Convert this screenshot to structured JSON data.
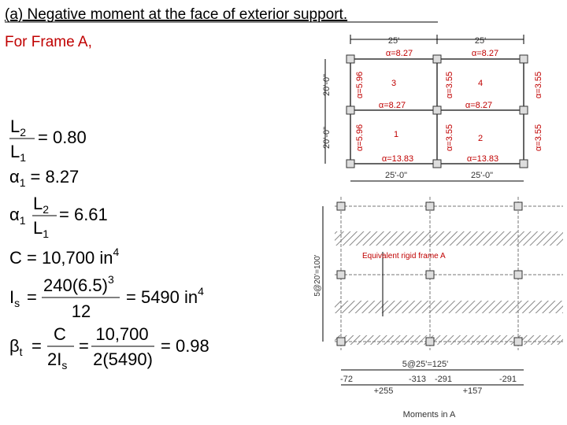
{
  "header": {
    "title": "(a) Negative moment at the face of exterior support.",
    "subtitle": "For Frame A,"
  },
  "equations": {
    "ratio": {
      "num": "L",
      "num_sub": "2",
      "den": "L",
      "den_sub": "1",
      "result": "= 0.80"
    },
    "alpha": {
      "symbol": "α",
      "sub": "1",
      "result": "= 8.27"
    },
    "alpha_ratio": {
      "symbol": "α",
      "sub": "1",
      "num": "L",
      "num_sub": "2",
      "den": "L",
      "den_sub": "1",
      "result": "= 6.61"
    },
    "torsion": {
      "text": "C = 10,700 in",
      "sup": "4"
    },
    "slab_inertia": {
      "symbol": "I",
      "sub": "s",
      "eq": "=",
      "num": "240(6.5)",
      "num_sup": "3",
      "den": "12",
      "result": "= 5490 in",
      "result_sup": "4"
    },
    "beta": {
      "symbol": "β",
      "sub": "t",
      "eq": "=",
      "num1": "C",
      "den1": "2I",
      "den1_sub": "s",
      "eq2": "=",
      "num2": "10,700",
      "den2": "2(5490)",
      "result": "= 0.98"
    }
  },
  "frame_plan": {
    "spans_top": [
      "25'",
      "25'"
    ],
    "alpha_top": [
      "α=8.27",
      "α=8.27"
    ],
    "panels_upper": [
      "3",
      "4"
    ],
    "alpha_cols_upper": [
      "α=5.96",
      "α=3.55",
      "α=3.55"
    ],
    "alpha_mid": [
      "α=8.27",
      "α=8.27"
    ],
    "heights": [
      "20'-0\"",
      "20'-0\""
    ],
    "panels_lower": [
      "1",
      "2"
    ],
    "alpha_cols_lower": [
      "α=5.96",
      "α=3.55",
      "α=3.55"
    ],
    "alpha_bottom": [
      "α=13.83",
      "α=13.83"
    ],
    "spans_bottom": [
      "25'-0\"",
      "25'-0\""
    ]
  },
  "equivalent_frame": {
    "label": "Equivalent rigid frame A",
    "height_dim": "5@20'=100'",
    "width_dim": "5@25'=125'",
    "moments_top": [
      "-72",
      "-313",
      "-291",
      "-291"
    ],
    "moments_bottom": [
      "+255",
      "+157"
    ],
    "caption": "Moments in A"
  }
}
